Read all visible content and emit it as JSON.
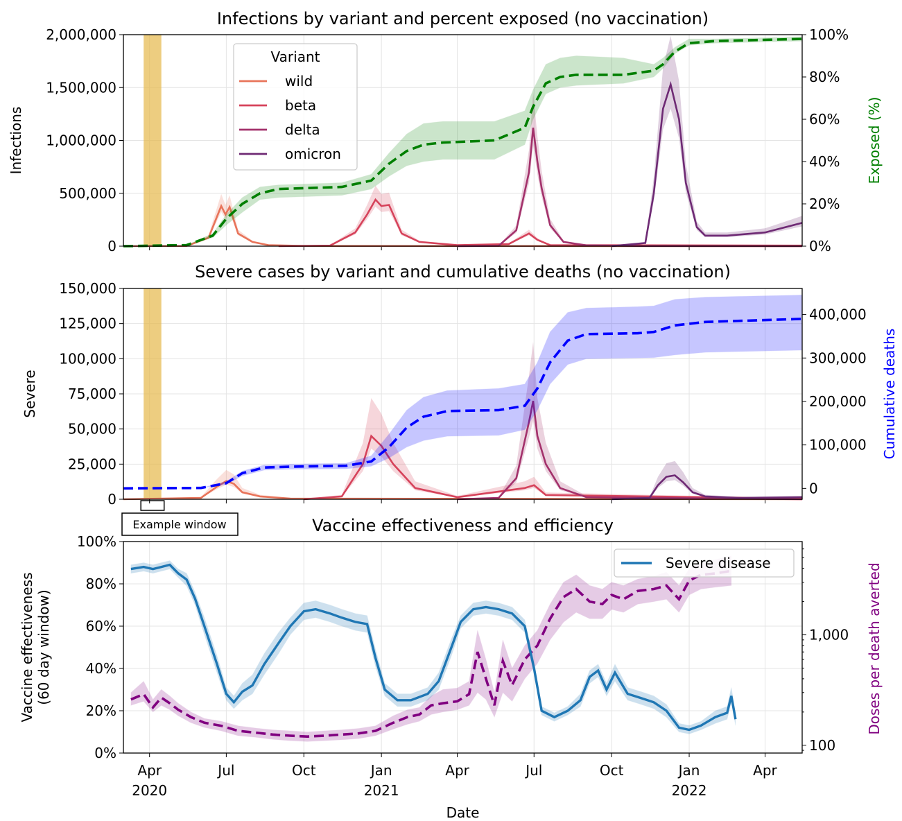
{
  "figure": {
    "xlabel": "Date",
    "x_ticks": {
      "months": [
        "Apr",
        "Jul",
        "Oct",
        "Jan",
        "Apr",
        "Jul",
        "Oct",
        "Jan",
        "Apr"
      ],
      "years": [
        "2020",
        "2021",
        "2022"
      ]
    },
    "colors": {
      "wild": "#e8745a",
      "beta": "#d6435b",
      "delta": "#a3316b",
      "omicron": "#6e2a74",
      "exposed": "#007f00",
      "deaths": "#0000ff",
      "effectiveness": "#1f77b4",
      "doses": "#800080",
      "window": "#e6b84a"
    }
  },
  "chart_data": [
    {
      "type": "line",
      "title": "Infections by variant and percent exposed (no vaccination)",
      "ylabel": "Infections",
      "y2label": "Exposed (%)",
      "ylim": [
        0,
        2000000
      ],
      "y2lim": [
        0,
        100
      ],
      "yticks": [
        "0",
        "500,000",
        "1,000,000",
        "1,500,000",
        "2,000,000"
      ],
      "y2ticks": [
        "0%",
        "20%",
        "40%",
        "60%",
        "80%",
        "100%"
      ],
      "legend": {
        "title": "Variant",
        "position": "upper-left",
        "entries": [
          "wild",
          "beta",
          "delta",
          "omicron"
        ]
      },
      "highlight_window": [
        "2020-03-25",
        "2020-04-15"
      ],
      "series": [
        {
          "name": "wild",
          "x": [
            "2020-03-01",
            "2020-05-15",
            "2020-06-10",
            "2020-06-25",
            "2020-06-30",
            "2020-07-05",
            "2020-07-15",
            "2020-08-01",
            "2020-08-20",
            "2020-10-01",
            "2022-05-15"
          ],
          "y": [
            0,
            2000,
            80000,
            380000,
            300000,
            370000,
            120000,
            40000,
            10000,
            2000,
            0
          ]
        },
        {
          "name": "beta",
          "x": [
            "2020-09-01",
            "2020-11-01",
            "2020-12-01",
            "2020-12-15",
            "2020-12-25",
            "2021-01-01",
            "2021-01-10",
            "2021-01-25",
            "2021-02-15",
            "2021-04-01",
            "2021-06-01",
            "2021-06-25",
            "2021-07-05",
            "2021-07-20",
            "2022-05-15"
          ],
          "y": [
            0,
            5000,
            130000,
            300000,
            440000,
            380000,
            390000,
            120000,
            40000,
            10000,
            20000,
            120000,
            60000,
            10000,
            5000
          ]
        },
        {
          "name": "delta",
          "x": [
            "2021-04-01",
            "2021-05-20",
            "2021-06-10",
            "2021-06-25",
            "2021-06-30",
            "2021-07-05",
            "2021-07-10",
            "2021-07-20",
            "2021-08-05",
            "2021-09-01",
            "2021-11-01",
            "2022-05-15"
          ],
          "y": [
            0,
            3000,
            150000,
            700000,
            1120000,
            800000,
            550000,
            200000,
            40000,
            8000,
            2000,
            0
          ]
        },
        {
          "name": "omicron",
          "x": [
            "2021-10-01",
            "2021-11-10",
            "2021-11-20",
            "2021-12-01",
            "2021-12-10",
            "2021-12-20",
            "2021-12-28",
            "2022-01-10",
            "2022-01-20",
            "2022-02-15",
            "2022-04-01",
            "2022-05-15"
          ],
          "y": [
            0,
            30000,
            500000,
            1300000,
            1530000,
            1200000,
            600000,
            180000,
            100000,
            100000,
            130000,
            220000
          ]
        }
      ],
      "exposed": {
        "name": "Exposed (%)",
        "x": [
          "2020-03-01",
          "2020-05-15",
          "2020-06-15",
          "2020-07-01",
          "2020-07-20",
          "2020-08-10",
          "2020-09-01",
          "2020-11-15",
          "2020-12-20",
          "2021-01-10",
          "2021-01-31",
          "2021-02-20",
          "2021-03-15",
          "2021-05-15",
          "2021-06-20",
          "2021-06-30",
          "2021-07-15",
          "2021-08-01",
          "2021-08-20",
          "2021-10-15",
          "2021-11-20",
          "2021-12-01",
          "2021-12-15",
          "2022-01-01",
          "2022-02-01",
          "2022-05-15"
        ],
        "y": [
          0,
          0.5,
          5,
          13,
          20,
          25,
          27,
          28,
          31,
          39,
          45,
          48,
          49,
          50,
          56,
          66,
          77,
          80,
          81,
          81,
          83,
          86,
          92,
          96,
          97,
          98
        ],
        "lower": [
          0,
          0.5,
          4,
          10,
          16,
          22,
          23,
          24,
          27,
          33,
          38,
          40,
          41,
          41,
          48,
          60,
          72,
          75,
          76,
          77,
          80,
          84,
          91,
          95,
          96,
          97
        ],
        "upper": [
          0,
          0.5,
          6,
          15,
          23,
          28,
          29,
          30,
          34,
          44,
          53,
          58,
          59,
          59,
          64,
          74,
          86,
          89,
          90,
          89,
          86,
          89,
          94,
          98,
          98,
          99
        ]
      }
    },
    {
      "type": "line",
      "title": "Severe cases by variant and cumulative deaths (no vaccination)",
      "ylabel": "Severe",
      "y2label": "Cumulative deaths",
      "ylim": [
        0,
        150000
      ],
      "y2lim": [
        -25000,
        460000
      ],
      "yticks": [
        "0",
        "25,000",
        "50,000",
        "75,000",
        "100,000",
        "125,000",
        "150,000"
      ],
      "y2ticks": [
        "0",
        "100,000",
        "200,000",
        "300,000",
        "400,000"
      ],
      "annotation": "Example window",
      "highlight_window": [
        "2020-03-25",
        "2020-04-15"
      ],
      "series": [
        {
          "name": "wild",
          "x": [
            "2020-03-01",
            "2020-06-01",
            "2020-06-20",
            "2020-07-01",
            "2020-07-10",
            "2020-07-20",
            "2020-08-10",
            "2020-09-15",
            "2022-05-15"
          ],
          "y": [
            0,
            1000,
            9000,
            13000,
            11000,
            5000,
            2000,
            500,
            0
          ]
        },
        {
          "name": "beta",
          "x": [
            "2020-10-01",
            "2020-11-15",
            "2020-12-10",
            "2020-12-20",
            "2021-01-01",
            "2021-01-15",
            "2021-02-10",
            "2021-04-01",
            "2021-06-20",
            "2021-07-01",
            "2021-07-15",
            "2022-05-15"
          ],
          "y": [
            0,
            2000,
            25000,
            45000,
            38000,
            25000,
            8000,
            1500,
            8000,
            10000,
            3000,
            500
          ]
        },
        {
          "name": "delta",
          "x": [
            "2021-04-01",
            "2021-05-20",
            "2021-06-10",
            "2021-06-25",
            "2021-06-30",
            "2021-07-05",
            "2021-07-15",
            "2021-08-01",
            "2021-09-01",
            "2022-05-15"
          ],
          "y": [
            0,
            1000,
            15000,
            55000,
            70000,
            45000,
            25000,
            8000,
            1500,
            0
          ]
        },
        {
          "name": "omicron",
          "x": [
            "2021-10-01",
            "2021-11-15",
            "2021-11-25",
            "2021-12-05",
            "2021-12-15",
            "2021-12-25",
            "2022-01-05",
            "2022-01-20",
            "2022-03-01",
            "2022-05-15"
          ],
          "y": [
            0,
            1000,
            10000,
            16000,
            17000,
            12000,
            5000,
            2000,
            1000,
            1500
          ]
        }
      ],
      "deaths": {
        "name": "Cumulative deaths",
        "x": [
          "2020-03-01",
          "2020-06-01",
          "2020-07-01",
          "2020-07-20",
          "2020-08-15",
          "2020-09-15",
          "2020-11-20",
          "2020-12-20",
          "2021-01-10",
          "2021-01-31",
          "2021-02-20",
          "2021-03-20",
          "2021-05-20",
          "2021-06-20",
          "2021-07-05",
          "2021-07-20",
          "2021-08-10",
          "2021-09-01",
          "2021-11-01",
          "2021-11-20",
          "2021-12-15",
          "2022-01-20",
          "2022-05-15"
        ],
        "y": [
          0,
          1000,
          12000,
          35000,
          48000,
          50000,
          52000,
          62000,
          95000,
          140000,
          165000,
          178000,
          180000,
          190000,
          230000,
          290000,
          340000,
          355000,
          357000,
          360000,
          375000,
          383000,
          390000
        ],
        "lower": [
          0,
          1000,
          9000,
          29000,
          42000,
          44000,
          45000,
          51000,
          70000,
          95000,
          110000,
          120000,
          122000,
          135000,
          180000,
          240000,
          285000,
          298000,
          300000,
          301000,
          307000,
          313000,
          318000
        ],
        "upper": [
          0,
          1000,
          16000,
          40000,
          54000,
          56000,
          58000,
          75000,
          125000,
          180000,
          210000,
          225000,
          230000,
          240000,
          290000,
          360000,
          405000,
          415000,
          418000,
          420000,
          435000,
          440000,
          445000
        ]
      }
    },
    {
      "type": "line",
      "title": "Vaccine effectiveness and efficiency",
      "ylabel": "Vaccine effectiveness\n(60 day window)",
      "y2label": "Doses per death averted",
      "ylim": [
        0,
        100
      ],
      "y2scale": "log",
      "y2ticks": [
        "100",
        "1,000"
      ],
      "yticks": [
        "0%",
        "20%",
        "40%",
        "60%",
        "80%",
        "100%"
      ],
      "legend": {
        "position": "top-right",
        "entries": [
          "Severe disease"
        ]
      },
      "effectiveness": {
        "name": "Severe disease",
        "x": [
          "2020-03-10",
          "2020-03-25",
          "2020-04-05",
          "2020-04-15",
          "2020-04-25",
          "2020-05-05",
          "2020-05-15",
          "2020-05-25",
          "2020-06-05",
          "2020-06-20",
          "2020-07-01",
          "2020-07-10",
          "2020-07-20",
          "2020-08-01",
          "2020-08-15",
          "2020-09-01",
          "2020-09-15",
          "2020-10-01",
          "2020-10-15",
          "2020-11-01",
          "2020-11-15",
          "2020-12-01",
          "2020-12-15",
          "2020-12-25",
          "2021-01-05",
          "2021-01-20",
          "2021-02-05",
          "2021-02-25",
          "2021-03-10",
          "2021-03-25",
          "2021-04-05",
          "2021-04-20",
          "2021-05-05",
          "2021-05-20",
          "2021-06-05",
          "2021-06-20",
          "2021-07-01",
          "2021-07-10",
          "2021-07-25",
          "2021-08-10",
          "2021-08-25",
          "2021-09-05",
          "2021-09-15",
          "2021-09-25",
          "2021-10-05",
          "2021-10-20",
          "2021-11-05",
          "2021-11-20",
          "2021-12-05",
          "2021-12-20",
          "2022-01-01",
          "2022-01-15",
          "2022-02-01",
          "2022-02-15",
          "2022-02-20",
          "2022-02-25"
        ],
        "y": [
          87,
          88,
          87,
          88,
          89,
          85,
          82,
          73,
          60,
          42,
          28,
          24,
          29,
          32,
          42,
          52,
          60,
          67,
          68,
          66,
          64,
          62,
          61,
          45,
          30,
          25,
          25,
          28,
          34,
          50,
          62,
          68,
          69,
          68,
          66,
          60,
          40,
          20,
          17,
          20,
          25,
          36,
          39,
          30,
          38,
          28,
          26,
          24,
          20,
          12,
          11,
          13,
          17,
          19,
          27,
          16
        ],
        "lower": [
          85,
          86,
          85,
          86,
          87,
          83,
          79,
          70,
          56,
          38,
          25,
          21,
          25,
          28,
          37,
          47,
          56,
          63,
          64,
          62,
          60,
          58,
          57,
          41,
          27,
          22,
          22,
          25,
          30,
          46,
          59,
          65,
          66,
          65,
          63,
          57,
          37,
          18,
          15,
          18,
          22,
          33,
          36,
          27,
          34,
          25,
          23,
          21,
          17,
          10,
          9,
          11,
          14,
          16,
          24,
          13
        ],
        "upper": [
          89,
          90,
          89,
          90,
          91,
          87,
          85,
          76,
          64,
          46,
          31,
          27,
          33,
          37,
          47,
          57,
          64,
          71,
          72,
          70,
          68,
          66,
          65,
          49,
          33,
          28,
          28,
          31,
          38,
          54,
          65,
          71,
          72,
          71,
          69,
          63,
          43,
          22,
          19,
          22,
          28,
          39,
          42,
          33,
          42,
          31,
          29,
          27,
          23,
          14,
          13,
          15,
          20,
          22,
          31,
          19
        ]
      },
      "doses": {
        "name": "Doses per death averted",
        "x": [
          "2020-03-10",
          "2020-03-25",
          "2020-04-05",
          "2020-04-15",
          "2020-04-25",
          "2020-05-05",
          "2020-05-20",
          "2020-06-05",
          "2020-06-25",
          "2020-07-15",
          "2020-08-05",
          "2020-08-25",
          "2020-09-15",
          "2020-10-05",
          "2020-10-25",
          "2020-11-15",
          "2020-12-05",
          "2020-12-25",
          "2021-01-15",
          "2021-02-01",
          "2021-02-15",
          "2021-03-01",
          "2021-03-15",
          "2021-04-01",
          "2021-04-15",
          "2021-04-25",
          "2021-05-05",
          "2021-05-15",
          "2021-05-25",
          "2021-06-05",
          "2021-06-20",
          "2021-07-05",
          "2021-07-20",
          "2021-08-05",
          "2021-08-20",
          "2021-09-05",
          "2021-09-20",
          "2021-10-01",
          "2021-10-15",
          "2021-11-01",
          "2021-11-20",
          "2021-12-05",
          "2021-12-20",
          "2022-01-01",
          "2022-01-15",
          "2022-02-01",
          "2022-02-20"
        ],
        "y": [
          260,
          290,
          220,
          270,
          240,
          210,
          180,
          160,
          150,
          135,
          130,
          125,
          122,
          120,
          122,
          125,
          128,
          135,
          160,
          180,
          190,
          230,
          240,
          250,
          290,
          700,
          400,
          230,
          580,
          350,
          600,
          800,
          1400,
          2200,
          2600,
          2000,
          1900,
          2300,
          2100,
          2500,
          2600,
          2800,
          2100,
          3100,
          3500,
          3600,
          3800
        ],
        "lower": [
          230,
          250,
          200,
          230,
          210,
          185,
          160,
          145,
          135,
          122,
          118,
          113,
          110,
          108,
          110,
          112,
          115,
          122,
          140,
          155,
          165,
          190,
          200,
          210,
          230,
          300,
          260,
          180,
          300,
          250,
          400,
          550,
          900,
          1300,
          1600,
          1400,
          1400,
          1700,
          1600,
          1900,
          2000,
          2100,
          1600,
          2300,
          2600,
          2700,
          2800
        ],
        "upper": [
          300,
          380,
          260,
          320,
          280,
          240,
          200,
          175,
          165,
          150,
          143,
          138,
          135,
          132,
          135,
          138,
          142,
          150,
          185,
          210,
          220,
          280,
          320,
          330,
          380,
          1100,
          600,
          300,
          900,
          500,
          800,
          1100,
          1900,
          3000,
          3500,
          2800,
          2600,
          3000,
          2800,
          3200,
          3400,
          3700,
          2800,
          4000,
          4500,
          4800,
          5200
        ]
      }
    }
  ]
}
